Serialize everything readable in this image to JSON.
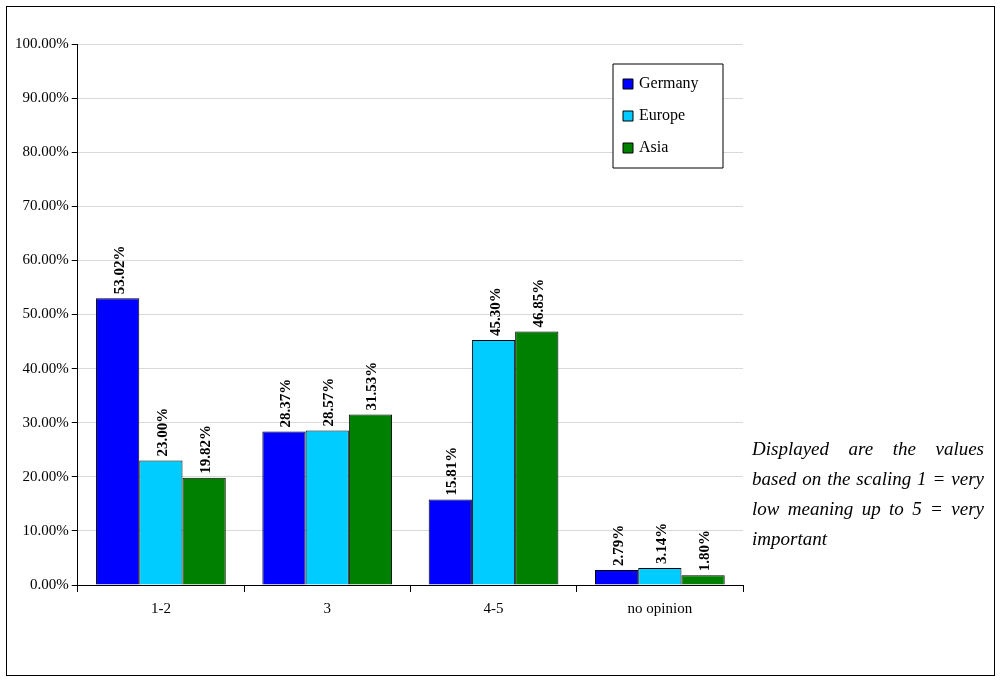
{
  "chart_data": {
    "type": "bar",
    "categories": [
      "1-2",
      "3",
      "4-5",
      "no opinion"
    ],
    "series": [
      {
        "name": "Germany",
        "color": "#0000ff",
        "values": [
          53.02,
          28.37,
          15.81,
          2.79
        ]
      },
      {
        "name": "Europe",
        "color": "#00ccff",
        "values": [
          23.0,
          28.57,
          45.3,
          3.14
        ]
      },
      {
        "name": "Asia",
        "color": "#008000",
        "values": [
          19.82,
          31.53,
          46.85,
          1.8
        ]
      }
    ],
    "value_labels": [
      [
        "53.02%",
        "28.37%",
        "15.81%",
        "2.79%"
      ],
      [
        "23.00%",
        "28.57%",
        "45.30%",
        "3.14%"
      ],
      [
        "19.82%",
        "31.53%",
        "46.85%",
        "1.80%"
      ]
    ],
    "ylim": [
      0,
      100
    ],
    "yticks": [
      {
        "value": 0,
        "label": "0.00%"
      },
      {
        "value": 10,
        "label": "10.00%"
      },
      {
        "value": 20,
        "label": "20.00%"
      },
      {
        "value": 30,
        "label": "30.00%"
      },
      {
        "value": 40,
        "label": "40.00%"
      },
      {
        "value": 50,
        "label": "50.00%"
      },
      {
        "value": 60,
        "label": "60.00%"
      },
      {
        "value": 70,
        "label": "70.00%"
      },
      {
        "value": 80,
        "label": "80.00%"
      },
      {
        "value": 90,
        "label": "90.00%"
      },
      {
        "value": 100,
        "label": "100.00%"
      }
    ],
    "grid": "y",
    "legend": "top right",
    "annotations": [
      "Displayed are the values based on the scaling 1 = very low meaning up to 5 = very important"
    ]
  }
}
